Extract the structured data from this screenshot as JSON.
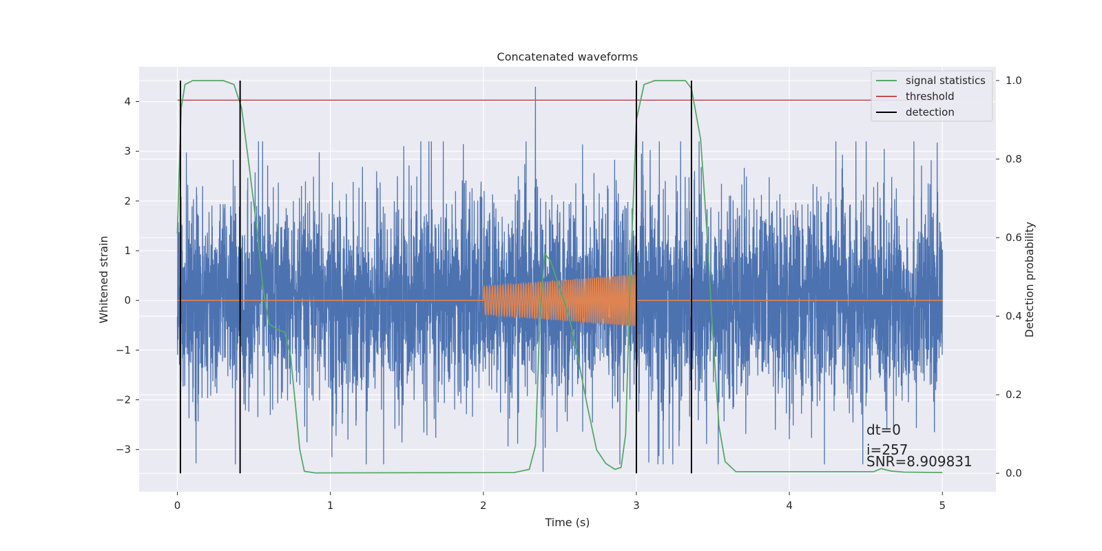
{
  "chart_data": {
    "type": "line",
    "title": "Concatenated waveforms",
    "xlabel": "Time (s)",
    "ylabel": "Whitened strain",
    "ylabel_right": "Detection probability",
    "xlim": [
      -0.25,
      5.35
    ],
    "ylim": [
      -3.85,
      4.7
    ],
    "ylim_right": [
      -0.047,
      1.035
    ],
    "x_ticks": [
      0,
      1,
      2,
      3,
      4,
      5
    ],
    "y_ticks": [
      -3,
      -2,
      -1,
      0,
      1,
      2,
      3,
      4
    ],
    "y_ticks_right": [
      0.0,
      0.2,
      0.4,
      0.6,
      0.8,
      1.0
    ],
    "y_tick_labels_right": [
      "0.0",
      "0.2",
      "0.4",
      "0.6",
      "0.8",
      "1.0"
    ],
    "grid": true,
    "legend_position": "top-right",
    "series": [
      {
        "name": "",
        "axis": "left",
        "color": "#4c72b0",
        "description": "whitened noisy strain, 0 to 5 s, amplitude envelope about ±3 with spikes",
        "x_range": [
          0,
          5
        ],
        "extremes": {
          "max": 4.3,
          "min": -3.45
        }
      },
      {
        "name": "",
        "axis": "left",
        "color": "#dd8452",
        "description": "injected chirp signal between 2 s and 3 s, otherwise zero",
        "x_range": [
          0,
          5
        ],
        "chirp": {
          "start": 2.0,
          "end": 3.0,
          "amp_start": 0.28,
          "amp_end": 0.52
        }
      },
      {
        "name": "signal statistics",
        "axis": "right",
        "color": "#55a868",
        "points": [
          [
            0.0,
            0.61
          ],
          [
            0.01,
            0.75
          ],
          [
            0.025,
            0.93
          ],
          [
            0.05,
            0.99
          ],
          [
            0.1,
            1.0
          ],
          [
            0.3,
            1.0
          ],
          [
            0.37,
            0.99
          ],
          [
            0.42,
            0.93
          ],
          [
            0.47,
            0.78
          ],
          [
            0.52,
            0.62
          ],
          [
            0.56,
            0.47
          ],
          [
            0.6,
            0.38
          ],
          [
            0.66,
            0.365
          ],
          [
            0.7,
            0.36
          ],
          [
            0.74,
            0.3
          ],
          [
            0.77,
            0.18
          ],
          [
            0.8,
            0.06
          ],
          [
            0.83,
            0.005
          ],
          [
            0.9,
            0.001
          ],
          [
            2.2,
            0.002
          ],
          [
            2.3,
            0.01
          ],
          [
            2.34,
            0.07
          ],
          [
            2.37,
            0.4
          ],
          [
            2.4,
            0.56
          ],
          [
            2.44,
            0.54
          ],
          [
            2.5,
            0.47
          ],
          [
            2.56,
            0.4
          ],
          [
            2.62,
            0.29
          ],
          [
            2.68,
            0.17
          ],
          [
            2.74,
            0.06
          ],
          [
            2.8,
            0.025
          ],
          [
            2.86,
            0.01
          ],
          [
            2.9,
            0.015
          ],
          [
            2.93,
            0.1
          ],
          [
            2.96,
            0.5
          ],
          [
            3.0,
            0.9
          ],
          [
            3.05,
            0.99
          ],
          [
            3.12,
            1.0
          ],
          [
            3.32,
            1.0
          ],
          [
            3.36,
            0.98
          ],
          [
            3.42,
            0.85
          ],
          [
            3.46,
            0.62
          ],
          [
            3.5,
            0.35
          ],
          [
            3.54,
            0.12
          ],
          [
            3.58,
            0.03
          ],
          [
            3.65,
            0.004
          ],
          [
            4.55,
            0.004
          ],
          [
            4.6,
            0.012
          ],
          [
            4.66,
            0.006
          ],
          [
            4.75,
            0.003
          ],
          [
            5.0,
            0.002
          ]
        ]
      },
      {
        "name": "threshold",
        "axis": "right",
        "color": "#c44e52",
        "value": 0.95,
        "x_range": [
          0,
          5
        ]
      },
      {
        "name": "detection",
        "axis": "right",
        "color": "#000000",
        "vlines": [
          0.02,
          0.41,
          3.0,
          3.36
        ],
        "span": [
          0.0,
          1.0
        ]
      }
    ],
    "annotations": [
      "dt=0",
      "i=257",
      "SNR=8.909831"
    ]
  }
}
